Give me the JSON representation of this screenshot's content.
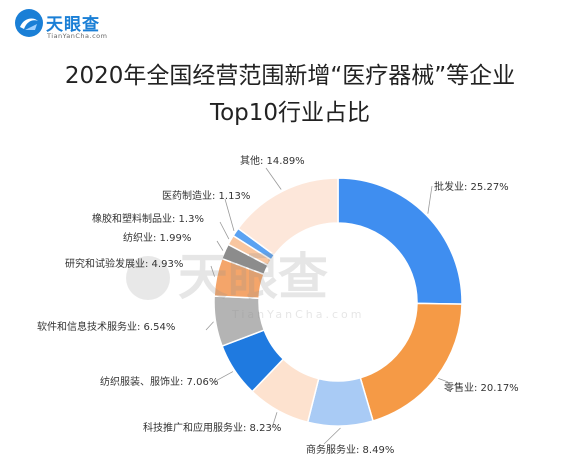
{
  "brand": {
    "name": "天眼查",
    "domain": "TianYanCha.com",
    "color": "#1a7fd6"
  },
  "title_line1": "2020年全国经营范围新增“医疗器械”等企业",
  "title_line2": "Top10行业占比",
  "watermark": {
    "text": "天眼查",
    "sub": "TianYanCha.com"
  },
  "chart_data": {
    "type": "pie",
    "style": "donut",
    "categories": [
      "批发业",
      "零售业",
      "商务服务业",
      "科技推广和应用服务业",
      "纺织服装、服饰业",
      "软件和信息技术服务业",
      "研究和试验发展业",
      "纺织业",
      "橡胶和塑料制品业",
      "医药制造业",
      "其他"
    ],
    "values": [
      25.27,
      20.17,
      8.49,
      8.23,
      7.06,
      6.54,
      4.93,
      1.99,
      1.3,
      1.13,
      14.89
    ],
    "labels": [
      "批发业: 25.27%",
      "零售业: 20.17%",
      "商务服务业: 8.49%",
      "科技推广和应用服务业: 8.23%",
      "纺织服装、服饰业: 7.06%",
      "软件和信息技术服务业: 6.54%",
      "研究和试验发展业: 4.93%",
      "纺织业: 1.99%",
      "橡胶和塑料制品业: 1.3%",
      "医药制造业: 1.13%",
      "其他: 14.89%"
    ],
    "colors": [
      "#3f8ef0",
      "#f59a46",
      "#a9cbf5",
      "#fde2cf",
      "#1f7ae0",
      "#b4b4b4",
      "#f4a56a",
      "#8c8c8c",
      "#f8c6a0",
      "#5aa2f2",
      "#fde7da"
    ],
    "unit": "%"
  }
}
